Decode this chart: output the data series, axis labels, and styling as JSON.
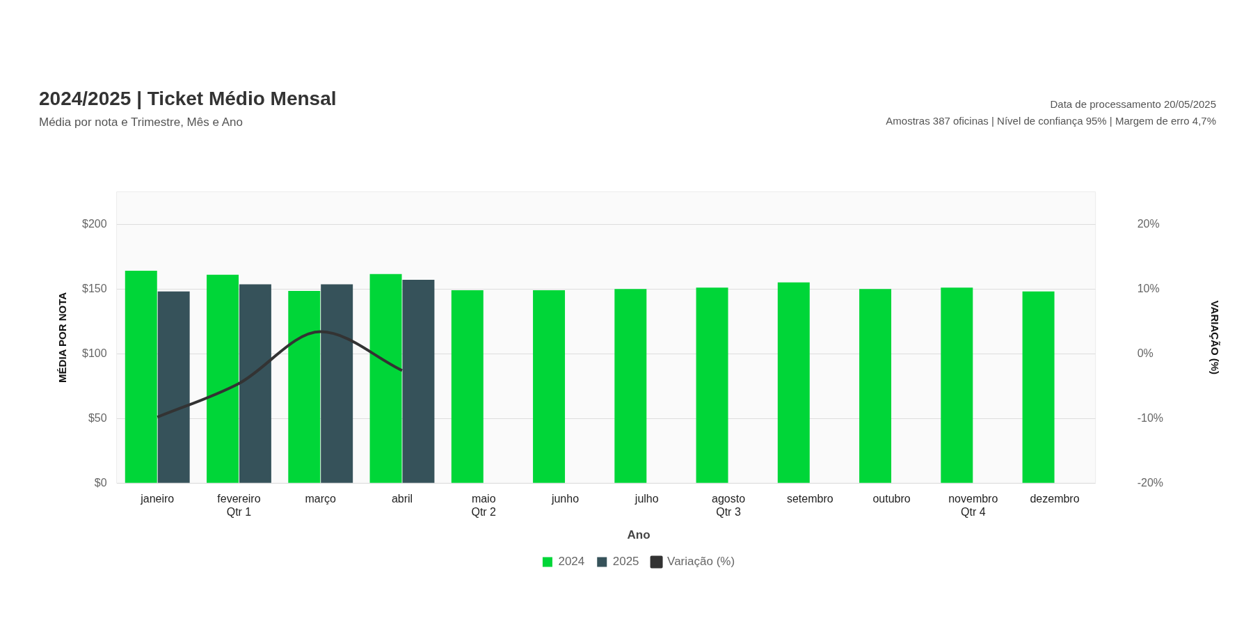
{
  "chart_data": {
    "type": "bar",
    "title": "2024/2025 | Ticket Médio Mensal",
    "subtitle": "Média por nota e Trimestre, Mês e Ano",
    "ylabel": "MÉDIA POR NOTA",
    "y2label": "VARIAÇÃO (%)",
    "legend_title": "Ano",
    "categories": [
      "janeiro",
      "fevereiro\nQtr 1",
      "março",
      "abril",
      "maio\nQtr 2",
      "junho",
      "julho",
      "agosto\nQtr 3",
      "setembro",
      "outubro",
      "novembro\nQtr 4",
      "dezembro"
    ],
    "series": [
      {
        "name": "2024",
        "color": "#00d638",
        "values": [
          164,
          161,
          148.5,
          161.5,
          149,
          149,
          150,
          151,
          155,
          150,
          151,
          148
        ]
      },
      {
        "name": "2025",
        "color": "#36525a",
        "values": [
          148,
          153.5,
          153.5,
          157,
          null,
          null,
          null,
          null,
          null,
          null,
          null,
          null
        ]
      },
      {
        "name": "Variação (%)",
        "type": "line",
        "axis": "y2",
        "color": "#333333",
        "values": [
          -9.8,
          -4.6,
          3.4,
          -2.6,
          null,
          null,
          null,
          null,
          null,
          null,
          null,
          null
        ]
      }
    ],
    "ylim": [
      0,
      225
    ],
    "yticks": [
      {
        "value": 0,
        "label": "$0"
      },
      {
        "value": 50,
        "label": "$50"
      },
      {
        "value": 100,
        "label": "$100"
      },
      {
        "value": 150,
        "label": "$150"
      },
      {
        "value": 200,
        "label": "$200"
      }
    ],
    "y2lim": [
      -20,
      25
    ],
    "y2ticks": [
      {
        "value": -20,
        "label": "-20%"
      },
      {
        "value": -10,
        "label": "-10%"
      },
      {
        "value": 0,
        "label": "0%"
      },
      {
        "value": 10,
        "label": "10%"
      },
      {
        "value": 20,
        "label": "20%"
      }
    ],
    "grid": "y",
    "legend": "bottom",
    "marker": "none",
    "annotations": [
      "Data de  processamento 20/05/2025",
      "Amostras  387 oficinas | Nível de confiança 95% | Margem de erro 4,7%"
    ]
  }
}
